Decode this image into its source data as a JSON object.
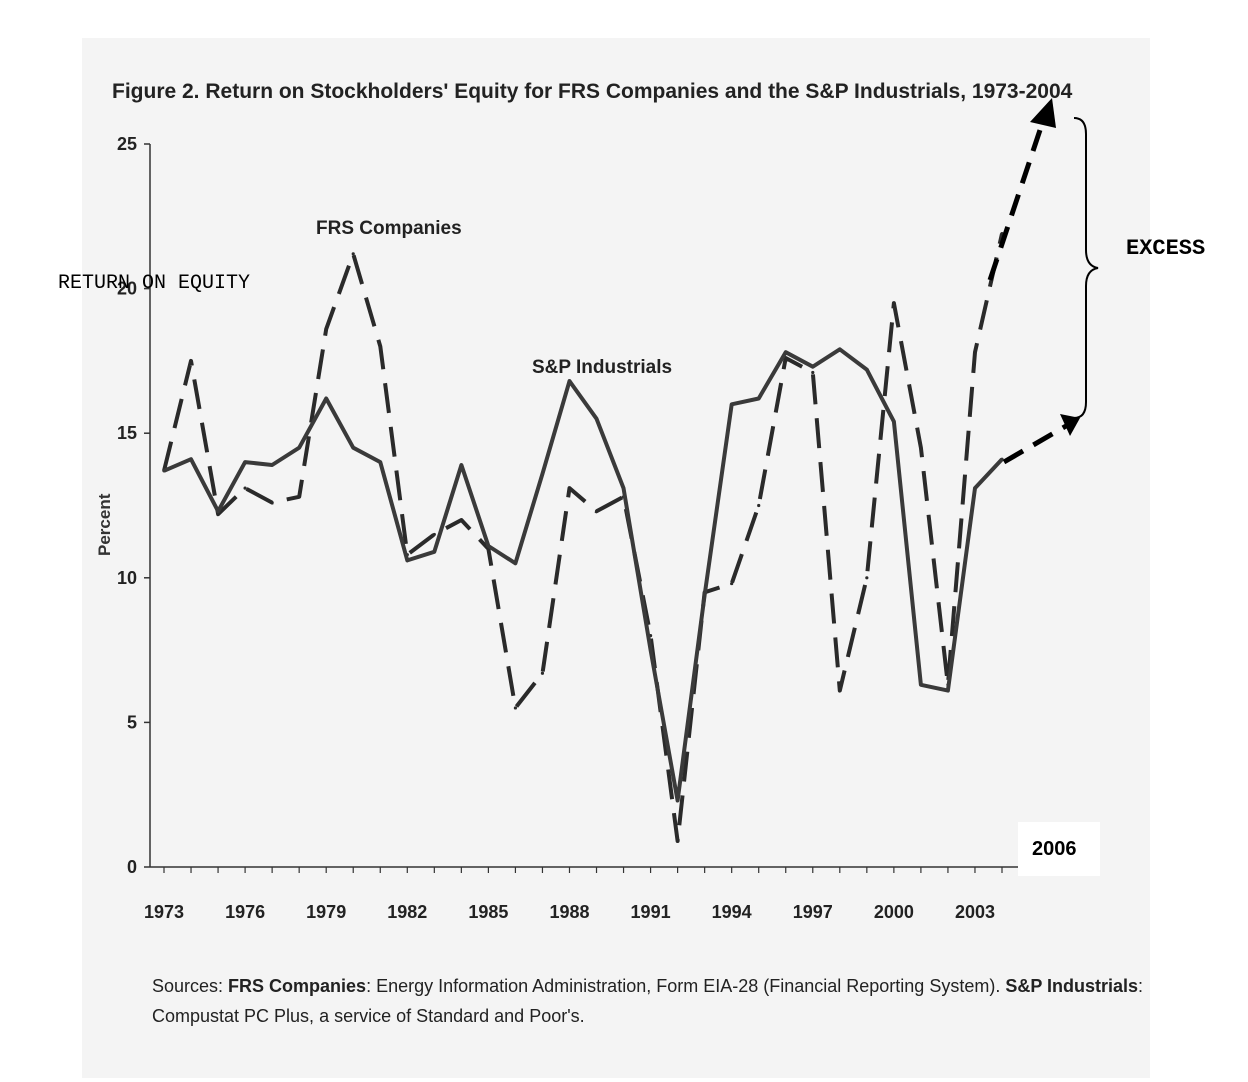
{
  "chart_data": {
    "type": "line",
    "title": "Figure 2.  Return on Stockholders' Equity for FRS Companies and the S&P Industrials, 1973-2004",
    "ylabel": "Percent",
    "ylim": [
      0,
      25
    ],
    "yticks": [
      "0",
      "5",
      "10",
      "15",
      "20",
      "25"
    ],
    "xlim": [
      1973,
      2004
    ],
    "xticks": [
      "1973",
      "1976",
      "1979",
      "1982",
      "1985",
      "1988",
      "1991",
      "1994",
      "1997",
      "2000",
      "2003"
    ],
    "x": [
      1973,
      1974,
      1975,
      1976,
      1977,
      1978,
      1979,
      1980,
      1981,
      1982,
      1983,
      1984,
      1985,
      1986,
      1987,
      1988,
      1989,
      1990,
      1991,
      1992,
      1993,
      1994,
      1995,
      1996,
      1997,
      1998,
      1999,
      2000,
      2001,
      2002,
      2003,
      2004
    ],
    "series": [
      {
        "name": "FRS Companies",
        "style": "dashed",
        "color": "#2a2a2a",
        "values": [
          13.7,
          17.5,
          12.2,
          13.1,
          12.6,
          12.8,
          18.6,
          21.2,
          18.0,
          10.8,
          11.5,
          12.0,
          11.0,
          5.5,
          6.7,
          13.1,
          12.3,
          12.8,
          8.0,
          0.9,
          9.5,
          9.8,
          12.5,
          17.6,
          17.1,
          6.1,
          10.0,
          19.5,
          14.5,
          6.3,
          17.8,
          21.9
        ]
      },
      {
        "name": "S&P Industrials",
        "style": "solid",
        "color": "#3a3a3a",
        "values": [
          13.7,
          14.1,
          12.3,
          14.0,
          13.9,
          14.5,
          16.2,
          14.5,
          14.0,
          10.6,
          10.9,
          13.9,
          11.1,
          10.5,
          13.6,
          16.8,
          15.5,
          13.1,
          7.5,
          2.3,
          9.4,
          16.0,
          16.2,
          17.8,
          17.3,
          17.9,
          17.2,
          15.4,
          6.3,
          6.1,
          13.1,
          14.1
        ]
      }
    ],
    "annotations": {
      "frs_label": "FRS Companies",
      "sp_label": "S&P Industrials",
      "ylabel_overlay": "RETURN ON EQUITY",
      "excess_label": "EXCESS",
      "year_note": "2006"
    },
    "sources": {
      "prefix": "Sources:  ",
      "frs_bold": "FRS Companies",
      "frs_text": ":  Energy Information Administration, Form EIA-28 (Financial Reporting System). ",
      "sp_bold": "S&P Industrials",
      "sp_text": ":",
      "line2": "Compustat PC Plus, a service of Standard and Poor's."
    }
  }
}
